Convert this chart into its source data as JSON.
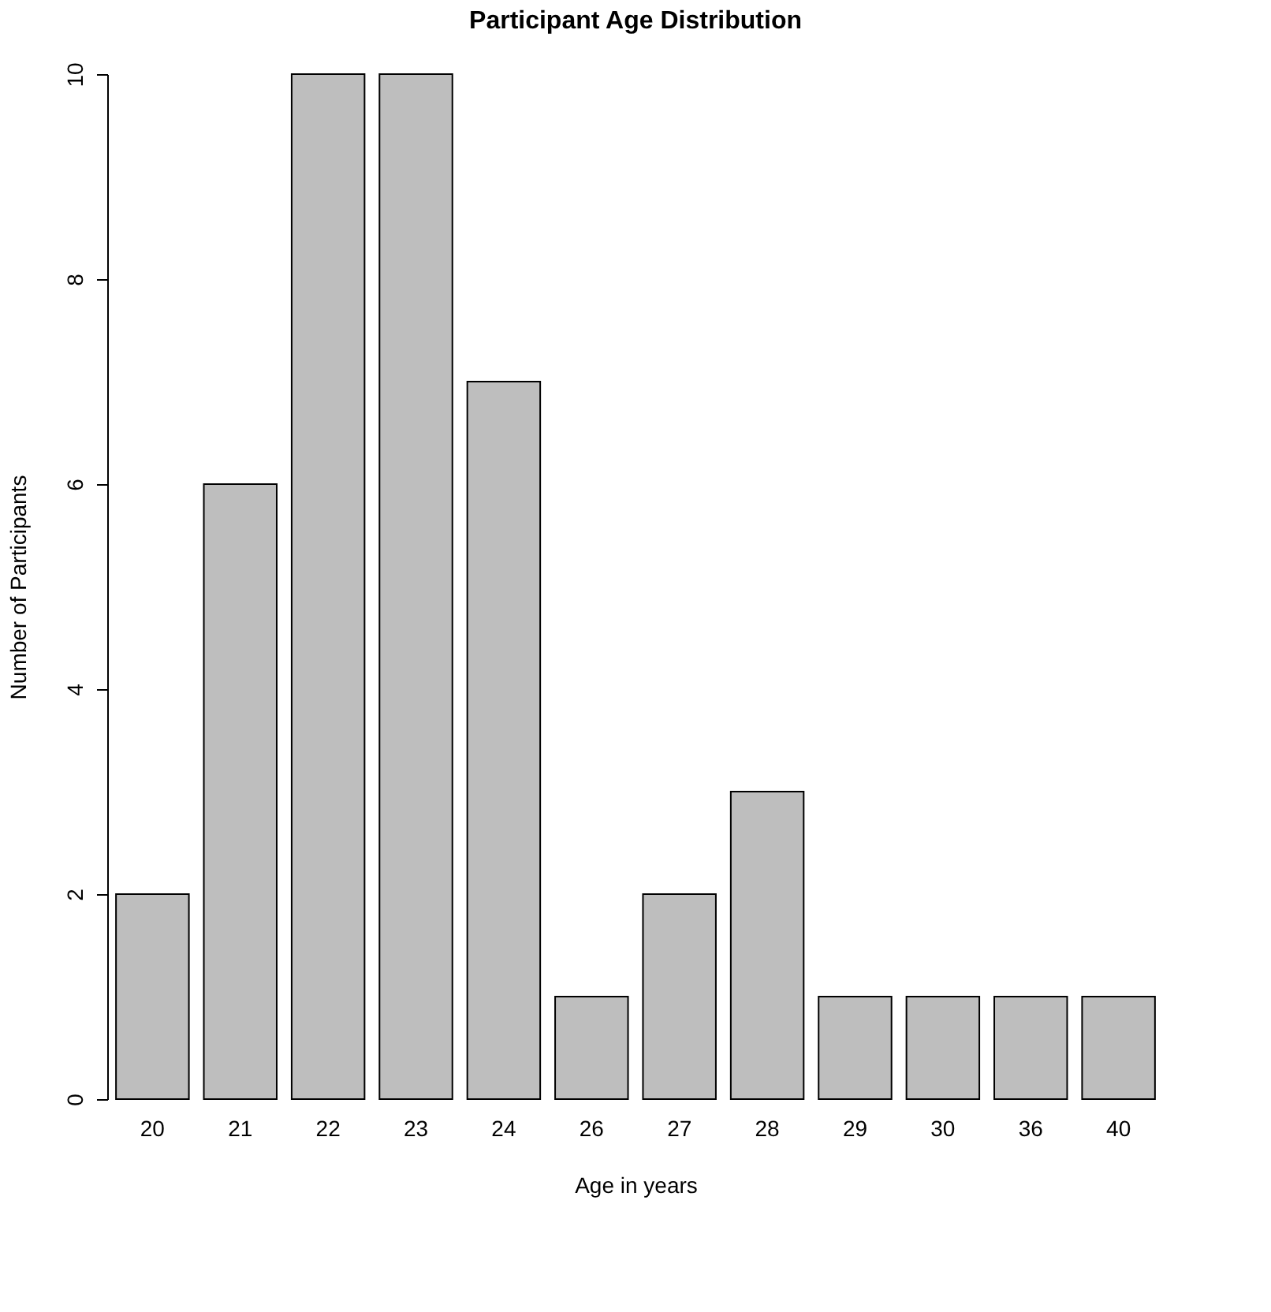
{
  "chart_data": {
    "type": "bar",
    "title": "Participant Age Distribution",
    "xlabel": "Age in years",
    "ylabel": "Number of Participants",
    "categories": [
      "20",
      "21",
      "22",
      "23",
      "24",
      "26",
      "27",
      "28",
      "29",
      "30",
      "36",
      "40"
    ],
    "values": [
      2,
      6,
      10,
      10,
      7,
      1,
      2,
      3,
      1,
      1,
      1,
      1
    ],
    "color": "#bebebe",
    "ylim": [
      0,
      10
    ],
    "yticks": [
      0,
      2,
      4,
      6,
      8,
      10
    ],
    "grid": false
  }
}
